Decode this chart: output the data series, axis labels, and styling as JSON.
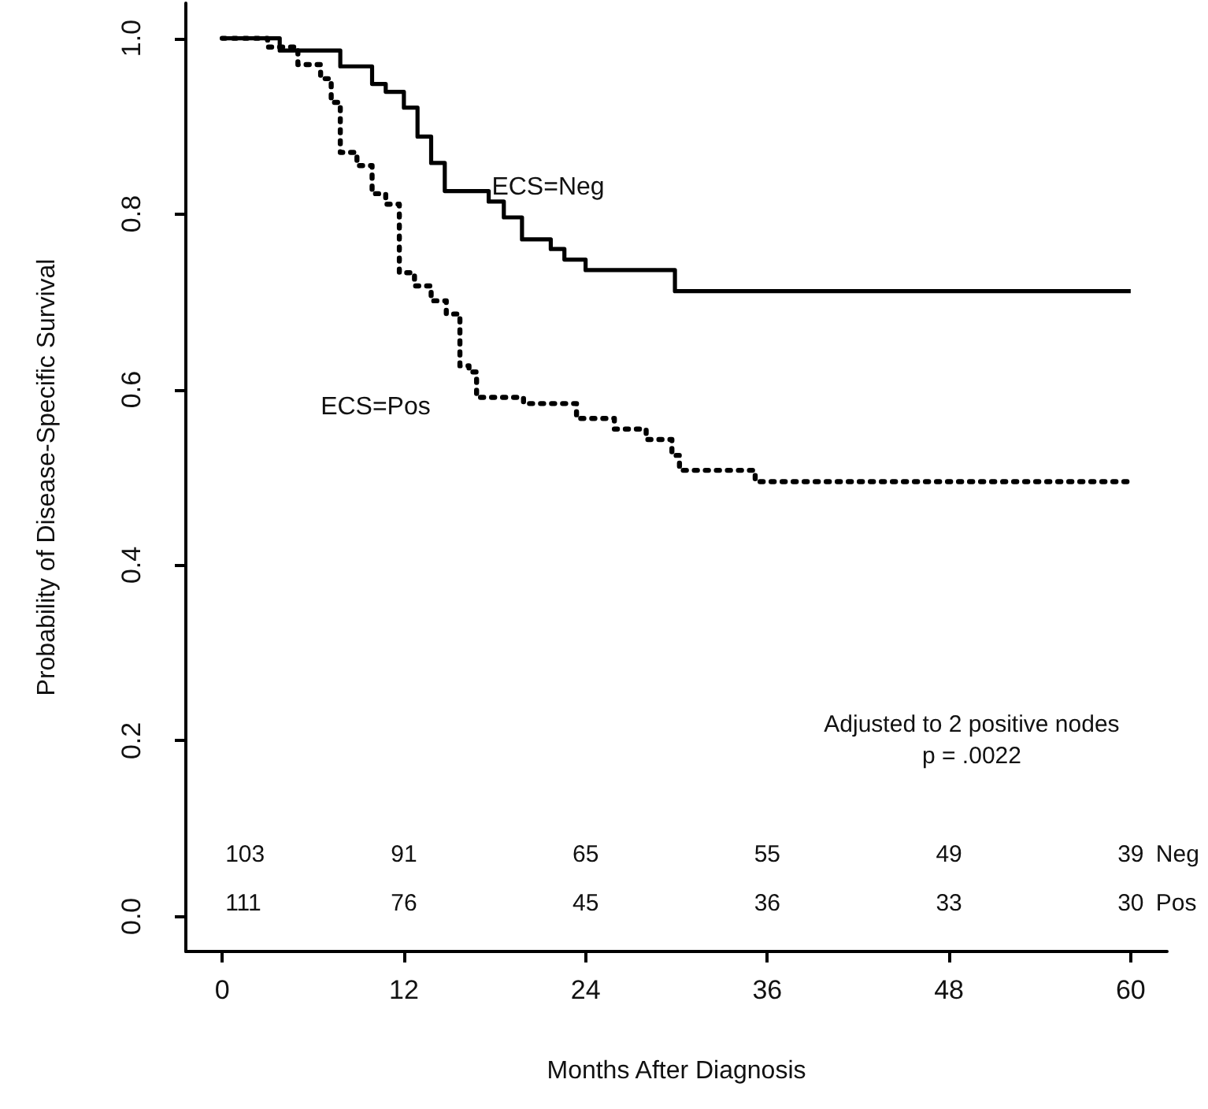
{
  "chart_data": {
    "type": "step",
    "xlabel": "Months After Diagnosis",
    "ylabel": "Probability of Disease-Specific Survival",
    "xlim": [
      -2.4,
      62.4
    ],
    "xticks": [
      0,
      12,
      24,
      36,
      48,
      60
    ],
    "ylim": [
      -0.04,
      1.04
    ],
    "yticks": [
      {
        "value": 0,
        "label": "0.0"
      },
      0.2,
      0.4,
      0.6,
      0.8,
      {
        "value": 1,
        "label": "1.0"
      }
    ],
    "grid": false,
    "legend": false,
    "marker": "none",
    "series": [
      {
        "name": "ECS=Neg",
        "color": "#000000",
        "line_style": "solid",
        "x": [
          0,
          3.8,
          7.8,
          9.9,
          10.8,
          12.0,
          12.9,
          13.8,
          14.7,
          17.6,
          18.6,
          19.8,
          21.7,
          22.6,
          24.0,
          29.9,
          60
        ],
        "values": [
          1.0,
          0.986,
          0.968,
          0.948,
          0.939,
          0.921,
          0.888,
          0.858,
          0.826,
          0.814,
          0.796,
          0.771,
          0.76,
          0.748,
          0.736,
          0.712,
          0.712
        ]
      },
      {
        "name": "ECS=Pos",
        "color": "#000000",
        "line_style": "dotted",
        "x": [
          0,
          3.0,
          5.0,
          6.5,
          7.2,
          7.8,
          8.9,
          9.9,
          10.8,
          11.7,
          12.7,
          13.8,
          14.8,
          15.7,
          16.3,
          16.8,
          19.9,
          23.4,
          25.9,
          28.0,
          29.7,
          30.2,
          35.2,
          60
        ],
        "values": [
          1.0,
          0.99,
          0.97,
          0.954,
          0.927,
          0.87,
          0.855,
          0.823,
          0.811,
          0.733,
          0.718,
          0.701,
          0.686,
          0.627,
          0.62,
          0.591,
          0.584,
          0.567,
          0.555,
          0.543,
          0.525,
          0.508,
          0.495,
          0.495
        ]
      }
    ],
    "annotations": [
      "103",
      "91",
      "65",
      "55",
      "49",
      "39",
      "111",
      "76",
      "45",
      "36",
      "33",
      "30",
      "Neg",
      "Pos",
      "Adjusted to 2 positive nodes\np = .0022"
    ]
  }
}
